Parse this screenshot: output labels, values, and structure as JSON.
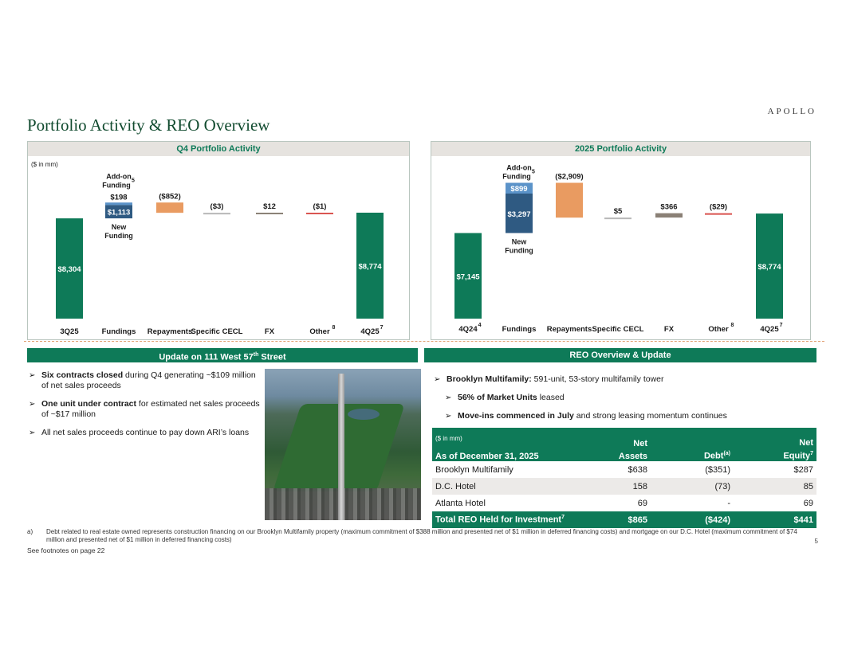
{
  "brand": "APOLLO",
  "title": "Portfolio Activity & REO Overview",
  "colors": {
    "green": "#0e7a58",
    "blue_dark": "#2f5a82",
    "blue_light": "#5b93c9",
    "orange": "#e99b61",
    "gray": "#8a8076",
    "red": "#d9534f"
  },
  "q4_panel": {
    "title": "Q4 Portfolio Activity",
    "units": "($ in mm)",
    "addon_label_1": "Add-on",
    "addon_label_2": "Funding",
    "addon_sup": "5",
    "new_funding_1": "New",
    "new_funding_2": "Funding"
  },
  "y25_panel": {
    "title": "2025 Portfolio Activity",
    "addon_label_1": "Add-on",
    "addon_label_2": "Funding",
    "addon_sup": "5",
    "new_funding_1": "New",
    "new_funding_2": "Funding"
  },
  "chart_data": [
    {
      "type": "bar",
      "title": "Q4 Portfolio Activity",
      "units": "($ in mm)",
      "categories": [
        "3Q25",
        "Fundings",
        "Repayments",
        "Specific CECL",
        "FX",
        "Other",
        "4Q25"
      ],
      "category_sups": [
        "",
        "",
        "",
        "",
        "",
        "8",
        "7"
      ],
      "bars": [
        {
          "category": "3Q25",
          "kind": "total",
          "value": 8304,
          "label": "$8,304"
        },
        {
          "category": "Fundings",
          "kind": "new_funding",
          "value": 1113,
          "label": "$1,113"
        },
        {
          "category": "Fundings",
          "kind": "addon_funding",
          "value": 198,
          "label": "$198"
        },
        {
          "category": "Repayments",
          "kind": "decrease",
          "value": -852,
          "label": "($852)"
        },
        {
          "category": "Specific CECL",
          "kind": "decrease",
          "value": -3,
          "label": "($3)"
        },
        {
          "category": "FX",
          "kind": "increase",
          "value": 12,
          "label": "$12"
        },
        {
          "category": "Other",
          "kind": "decrease",
          "value": -1,
          "label": "($1)"
        },
        {
          "category": "4Q25",
          "kind": "total",
          "value": 8774,
          "label": "$8,774"
        }
      ]
    },
    {
      "type": "bar",
      "title": "2025 Portfolio Activity",
      "units": "($ in mm)",
      "categories": [
        "4Q24",
        "Fundings",
        "Repayments",
        "Specific CECL",
        "FX",
        "Other",
        "4Q25"
      ],
      "category_sups": [
        "4",
        "",
        "",
        "",
        "",
        "8",
        "7"
      ],
      "bars": [
        {
          "category": "4Q24",
          "kind": "total",
          "value": 7145,
          "label": "$7,145"
        },
        {
          "category": "Fundings",
          "kind": "new_funding",
          "value": 3297,
          "label": "$3,297"
        },
        {
          "category": "Fundings",
          "kind": "addon_funding",
          "value": 899,
          "label": "$899"
        },
        {
          "category": "Repayments",
          "kind": "decrease",
          "value": -2909,
          "label": "($2,909)"
        },
        {
          "category": "Specific CECL",
          "kind": "increase",
          "value": 5,
          "label": "$5"
        },
        {
          "category": "FX",
          "kind": "increase",
          "value": 366,
          "label": "$366"
        },
        {
          "category": "Other",
          "kind": "decrease",
          "value": -29,
          "label": "($29)"
        },
        {
          "category": "4Q25",
          "kind": "total",
          "value": 8774,
          "label": "$8,774"
        }
      ]
    }
  ],
  "west57": {
    "header": "Update on 111 West 57",
    "header_sup": "th",
    "header_tail": " Street",
    "b1_bold": "Six contracts closed",
    "b1_text": " during Q4 generating ~$109 million of net sales proceeds",
    "b2_bold": "One unit under contract",
    "b2_text": " for estimated net sales proceeds of ~$17 million",
    "b3_text": "All net sales proceeds continue to pay down ARI’s loans"
  },
  "reo": {
    "header": "REO Overview & Update",
    "b1_bold": "Brooklyn Multifamily:",
    "b1_text": " 591-unit, 53-story multifamily tower",
    "b2_bold": "56% of Market Units",
    "b2_text": " leased",
    "b3_bold": "Move-ins commenced in July",
    "b3_text": " and strong leasing momentum continues",
    "table": {
      "units": "($ in mm)",
      "col0": "As of December 31, 2025",
      "col1_a": "Net",
      "col1_b": "Assets",
      "col2": "Debt",
      "col2_sup": "(a)",
      "col3_a": "Net",
      "col3_b": "Equity",
      "col3_sup": "7",
      "rows": [
        {
          "name": "Brooklyn Multifamily",
          "assets": "$638",
          "debt": "($351)",
          "equity": "$287"
        },
        {
          "name": "D.C. Hotel",
          "assets": "158",
          "debt": "(73)",
          "equity": "85"
        },
        {
          "name": "Atlanta Hotel",
          "assets": "69",
          "debt": "-",
          "equity": "69"
        }
      ],
      "total": {
        "name": "Total REO Held for Investment",
        "sup": "7",
        "assets": "$865",
        "debt": "($424)",
        "equity": "$441"
      }
    }
  },
  "footnote_mark": "a)",
  "footnote": "Debt related to real estate owned represents construction financing on our Brooklyn Multifamily property (maximum commitment of $388 million and presented net of $1 million in deferred financing costs) and mortgage on our D.C. Hotel (maximum commitment of $74 million and presented net of $1 million in deferred financing costs)",
  "see_footnotes": "See footnotes on page 22",
  "page_number": "5"
}
